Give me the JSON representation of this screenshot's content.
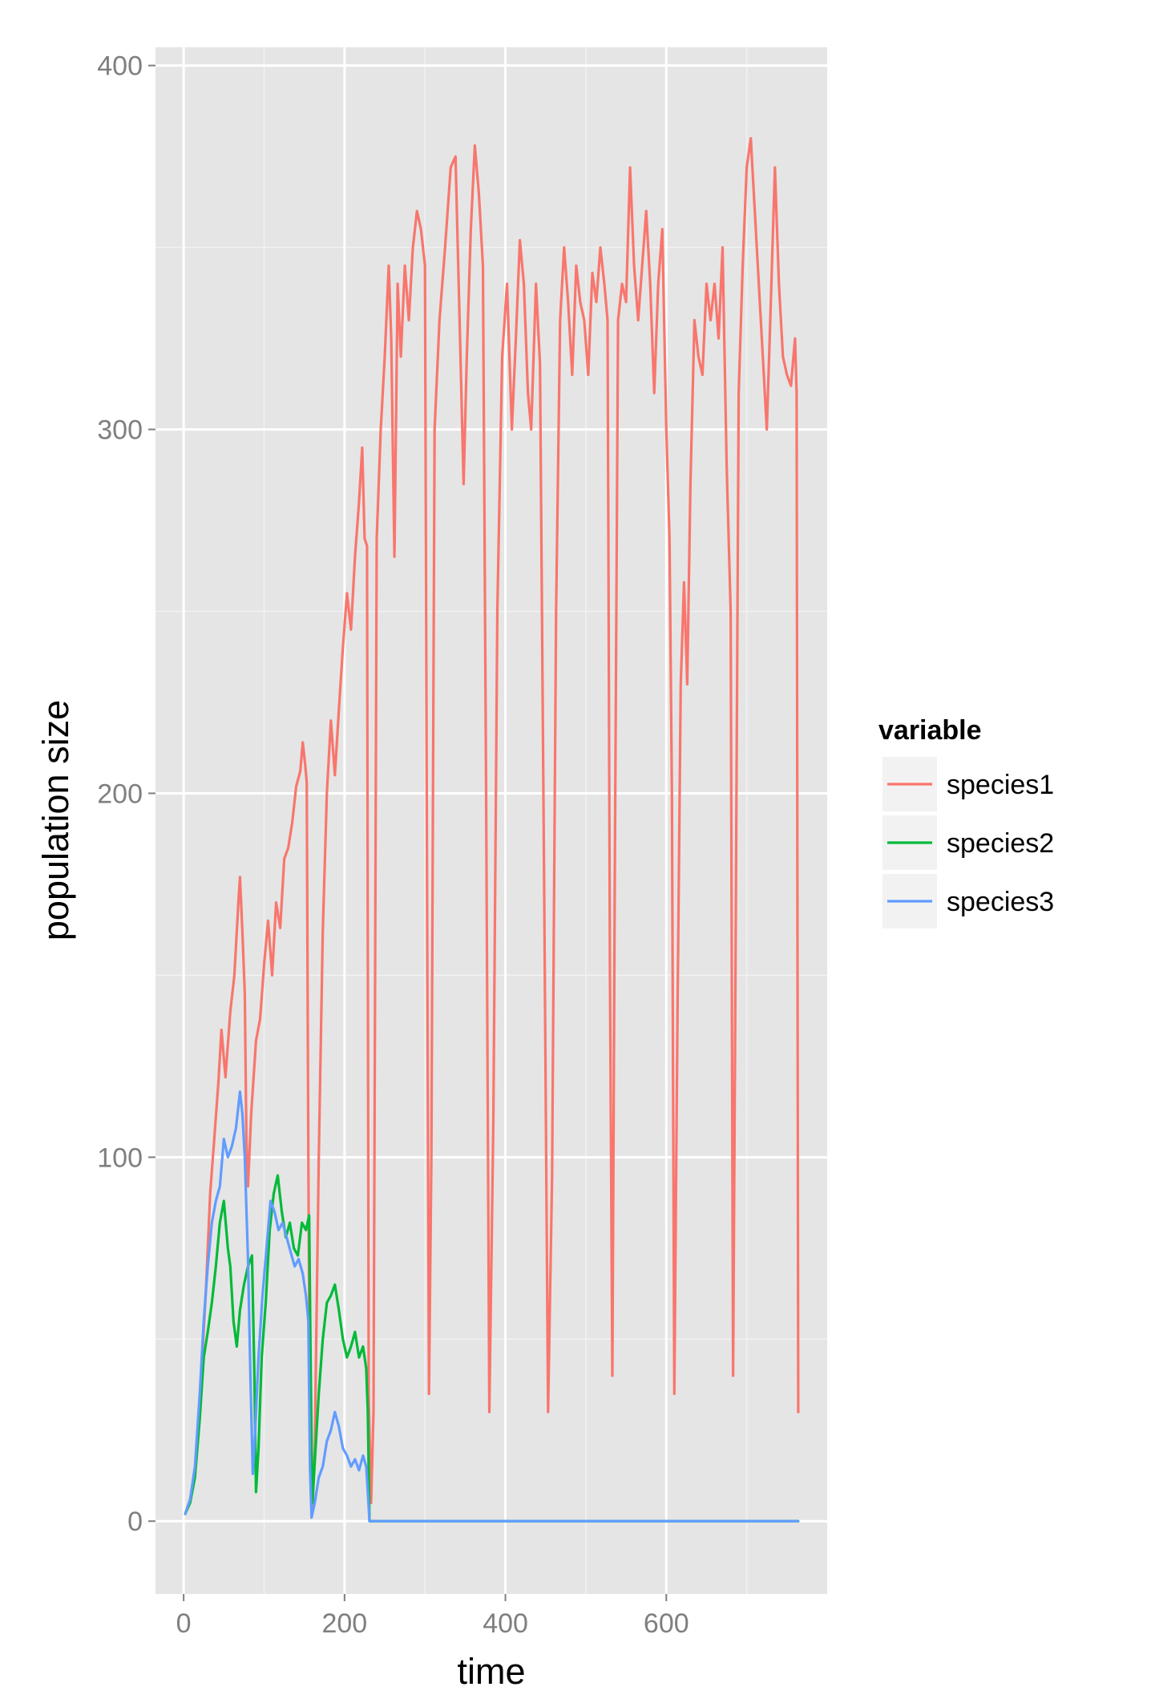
{
  "chart_data": {
    "type": "line",
    "xlabel": "time",
    "ylabel": "population size",
    "xlim": [
      -35,
      800
    ],
    "ylim": [
      -20,
      405
    ],
    "x_ticks": [
      0,
      200,
      400,
      600
    ],
    "x_tick_labels": [
      "0",
      "200",
      "400",
      "600"
    ],
    "y_ticks": [
      0,
      100,
      200,
      300,
      400
    ],
    "y_tick_labels": [
      "0",
      "100",
      "200",
      "300",
      "400"
    ],
    "grid": true,
    "panel_background": "#E5E5E5",
    "legend": {
      "title": "variable",
      "position": "right"
    },
    "series": [
      {
        "name": "species1",
        "color": "#F8766D",
        "points": [
          [
            2,
            2
          ],
          [
            8,
            6
          ],
          [
            15,
            15
          ],
          [
            22,
            40
          ],
          [
            28,
            65
          ],
          [
            33,
            90
          ],
          [
            38,
            105
          ],
          [
            43,
            120
          ],
          [
            47,
            135
          ],
          [
            52,
            122
          ],
          [
            58,
            140
          ],
          [
            63,
            150
          ],
          [
            68,
            170
          ],
          [
            70,
            177
          ],
          [
            73,
            162
          ],
          [
            76,
            145
          ],
          [
            78,
            105
          ],
          [
            80,
            92
          ],
          [
            84,
            112
          ],
          [
            90,
            132
          ],
          [
            95,
            138
          ],
          [
            100,
            153
          ],
          [
            105,
            165
          ],
          [
            110,
            150
          ],
          [
            115,
            170
          ],
          [
            120,
            163
          ],
          [
            125,
            182
          ],
          [
            130,
            185
          ],
          [
            135,
            192
          ],
          [
            140,
            202
          ],
          [
            145,
            206
          ],
          [
            148,
            214
          ],
          [
            151,
            208
          ],
          [
            153,
            203
          ],
          [
            155,
            100
          ],
          [
            157,
            20
          ],
          [
            160,
            2
          ],
          [
            163,
            20
          ],
          [
            168,
            100
          ],
          [
            173,
            162
          ],
          [
            178,
            200
          ],
          [
            183,
            220
          ],
          [
            188,
            205
          ],
          [
            193,
            223
          ],
          [
            198,
            240
          ],
          [
            203,
            255
          ],
          [
            208,
            245
          ],
          [
            213,
            265
          ],
          [
            218,
            280
          ],
          [
            222,
            295
          ],
          [
            225,
            270
          ],
          [
            228,
            268
          ],
          [
            230,
            35
          ],
          [
            233,
            5
          ],
          [
            236,
            30
          ],
          [
            240,
            270
          ],
          [
            245,
            300
          ],
          [
            250,
            320
          ],
          [
            255,
            345
          ],
          [
            258,
            325
          ],
          [
            262,
            265
          ],
          [
            266,
            340
          ],
          [
            270,
            320
          ],
          [
            275,
            345
          ],
          [
            280,
            330
          ],
          [
            285,
            350
          ],
          [
            290,
            360
          ],
          [
            295,
            355
          ],
          [
            300,
            345
          ],
          [
            303,
            150
          ],
          [
            305,
            35
          ],
          [
            308,
            100
          ],
          [
            312,
            300
          ],
          [
            318,
            330
          ],
          [
            325,
            350
          ],
          [
            332,
            372
          ],
          [
            338,
            375
          ],
          [
            343,
            330
          ],
          [
            348,
            285
          ],
          [
            352,
            320
          ],
          [
            357,
            355
          ],
          [
            362,
            378
          ],
          [
            367,
            365
          ],
          [
            372,
            345
          ],
          [
            376,
            200
          ],
          [
            380,
            30
          ],
          [
            385,
            110
          ],
          [
            390,
            250
          ],
          [
            396,
            320
          ],
          [
            402,
            340
          ],
          [
            408,
            300
          ],
          [
            413,
            325
          ],
          [
            418,
            352
          ],
          [
            423,
            340
          ],
          [
            428,
            310
          ],
          [
            432,
            300
          ],
          [
            438,
            340
          ],
          [
            443,
            318
          ],
          [
            448,
            180
          ],
          [
            453,
            30
          ],
          [
            458,
            95
          ],
          [
            463,
            250
          ],
          [
            468,
            330
          ],
          [
            473,
            350
          ],
          [
            478,
            335
          ],
          [
            483,
            315
          ],
          [
            488,
            345
          ],
          [
            493,
            335
          ],
          [
            498,
            330
          ],
          [
            503,
            315
          ],
          [
            508,
            343
          ],
          [
            513,
            335
          ],
          [
            518,
            350
          ],
          [
            523,
            340
          ],
          [
            527,
            330
          ],
          [
            530,
            150
          ],
          [
            533,
            40
          ],
          [
            536,
            180
          ],
          [
            540,
            330
          ],
          [
            545,
            340
          ],
          [
            550,
            335
          ],
          [
            555,
            372
          ],
          [
            560,
            345
          ],
          [
            565,
            330
          ],
          [
            570,
            345
          ],
          [
            575,
            360
          ],
          [
            580,
            340
          ],
          [
            585,
            310
          ],
          [
            590,
            340
          ],
          [
            595,
            355
          ],
          [
            600,
            300
          ],
          [
            604,
            270
          ],
          [
            607,
            200
          ],
          [
            610,
            35
          ],
          [
            614,
            140
          ],
          [
            618,
            230
          ],
          [
            622,
            258
          ],
          [
            626,
            230
          ],
          [
            630,
            285
          ],
          [
            635,
            330
          ],
          [
            640,
            320
          ],
          [
            645,
            315
          ],
          [
            650,
            340
          ],
          [
            655,
            330
          ],
          [
            660,
            340
          ],
          [
            665,
            325
          ],
          [
            670,
            350
          ],
          [
            675,
            290
          ],
          [
            680,
            250
          ],
          [
            683,
            40
          ],
          [
            686,
            150
          ],
          [
            690,
            310
          ],
          [
            695,
            345
          ],
          [
            700,
            372
          ],
          [
            705,
            380
          ],
          [
            710,
            360
          ],
          [
            715,
            340
          ],
          [
            720,
            320
          ],
          [
            725,
            300
          ],
          [
            730,
            335
          ],
          [
            735,
            372
          ],
          [
            740,
            340
          ],
          [
            745,
            320
          ],
          [
            750,
            315
          ],
          [
            755,
            312
          ],
          [
            760,
            325
          ],
          [
            762,
            310
          ],
          [
            764,
            30
          ]
        ]
      },
      {
        "name": "species2",
        "color": "#00BA38",
        "points": [
          [
            2,
            2
          ],
          [
            8,
            5
          ],
          [
            14,
            12
          ],
          [
            20,
            28
          ],
          [
            25,
            45
          ],
          [
            30,
            52
          ],
          [
            35,
            60
          ],
          [
            40,
            70
          ],
          [
            45,
            82
          ],
          [
            50,
            88
          ],
          [
            55,
            75
          ],
          [
            58,
            70
          ],
          [
            62,
            55
          ],
          [
            66,
            48
          ],
          [
            70,
            58
          ],
          [
            75,
            65
          ],
          [
            80,
            70
          ],
          [
            85,
            73
          ],
          [
            88,
            40
          ],
          [
            90,
            8
          ],
          [
            93,
            20
          ],
          [
            97,
            45
          ],
          [
            102,
            60
          ],
          [
            107,
            80
          ],
          [
            112,
            90
          ],
          [
            117,
            95
          ],
          [
            122,
            85
          ],
          [
            127,
            78
          ],
          [
            132,
            82
          ],
          [
            137,
            75
          ],
          [
            142,
            73
          ],
          [
            147,
            82
          ],
          [
            152,
            80
          ],
          [
            156,
            84
          ],
          [
            158,
            40
          ],
          [
            160,
            5
          ],
          [
            164,
            20
          ],
          [
            168,
            35
          ],
          [
            173,
            50
          ],
          [
            178,
            60
          ],
          [
            183,
            62
          ],
          [
            188,
            65
          ],
          [
            193,
            58
          ],
          [
            198,
            50
          ],
          [
            203,
            45
          ],
          [
            208,
            48
          ],
          [
            213,
            52
          ],
          [
            218,
            45
          ],
          [
            223,
            48
          ],
          [
            227,
            42
          ],
          [
            229,
            30
          ],
          [
            231,
            0
          ],
          [
            764,
            0
          ]
        ]
      },
      {
        "name": "species3",
        "color": "#619CFF",
        "points": [
          [
            2,
            2
          ],
          [
            8,
            6
          ],
          [
            14,
            15
          ],
          [
            20,
            35
          ],
          [
            25,
            55
          ],
          [
            30,
            70
          ],
          [
            35,
            82
          ],
          [
            40,
            88
          ],
          [
            45,
            92
          ],
          [
            50,
            105
          ],
          [
            55,
            100
          ],
          [
            60,
            103
          ],
          [
            65,
            108
          ],
          [
            70,
            118
          ],
          [
            73,
            112
          ],
          [
            76,
            100
          ],
          [
            80,
            72
          ],
          [
            83,
            40
          ],
          [
            86,
            13
          ],
          [
            89,
            25
          ],
          [
            93,
            45
          ],
          [
            98,
            62
          ],
          [
            103,
            75
          ],
          [
            108,
            88
          ],
          [
            113,
            85
          ],
          [
            118,
            80
          ],
          [
            123,
            82
          ],
          [
            128,
            78
          ],
          [
            133,
            74
          ],
          [
            138,
            70
          ],
          [
            143,
            72
          ],
          [
            148,
            68
          ],
          [
            152,
            62
          ],
          [
            155,
            55
          ],
          [
            157,
            15
          ],
          [
            159,
            1
          ],
          [
            163,
            5
          ],
          [
            168,
            12
          ],
          [
            173,
            15
          ],
          [
            178,
            22
          ],
          [
            183,
            25
          ],
          [
            188,
            30
          ],
          [
            193,
            26
          ],
          [
            198,
            20
          ],
          [
            203,
            18
          ],
          [
            208,
            15
          ],
          [
            213,
            17
          ],
          [
            218,
            14
          ],
          [
            223,
            18
          ],
          [
            227,
            15
          ],
          [
            229,
            8
          ],
          [
            231,
            0
          ],
          [
            764,
            0
          ]
        ]
      }
    ]
  }
}
